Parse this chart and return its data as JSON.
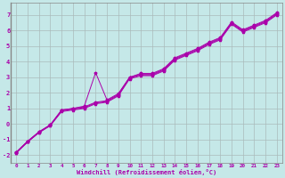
{
  "xlabel": "Windchill (Refroidissement éolien,°C)",
  "ylabel": "",
  "xlim": [
    -0.5,
    23.5
  ],
  "ylim": [
    -2.5,
    7.8
  ],
  "xticks": [
    0,
    1,
    2,
    3,
    4,
    5,
    6,
    7,
    8,
    9,
    10,
    11,
    12,
    13,
    14,
    15,
    16,
    17,
    18,
    19,
    20,
    21,
    22,
    23
  ],
  "yticks": [
    -2,
    -1,
    0,
    1,
    2,
    3,
    4,
    5,
    6,
    7
  ],
  "bg_color": "#c5e8e8",
  "line_color": "#aa00aa",
  "grid_color": "#aabbbb",
  "series_x": [
    0,
    1,
    2,
    3,
    4,
    5,
    6,
    7,
    8,
    9,
    10,
    11,
    12,
    13,
    14,
    15,
    16,
    17,
    18,
    19,
    20,
    21,
    22,
    23
  ],
  "series": [
    [
      -1.8,
      -1.1,
      -0.5,
      -0.05,
      0.9,
      1.0,
      1.15,
      3.3,
      1.55,
      1.95,
      3.0,
      3.25,
      3.25,
      3.55,
      4.25,
      4.55,
      4.85,
      5.25,
      5.55,
      6.55,
      6.05,
      6.35,
      6.65,
      7.15
    ],
    [
      -1.8,
      -1.1,
      -0.5,
      -0.05,
      0.9,
      1.0,
      1.1,
      1.4,
      1.5,
      1.9,
      3.0,
      3.2,
      3.2,
      3.5,
      4.2,
      4.5,
      4.8,
      5.2,
      5.5,
      6.5,
      6.0,
      6.3,
      6.6,
      7.1
    ],
    [
      -1.85,
      -1.15,
      -0.55,
      -0.1,
      0.85,
      0.95,
      1.05,
      1.35,
      1.45,
      1.85,
      2.95,
      3.15,
      3.15,
      3.45,
      4.15,
      4.45,
      4.75,
      5.15,
      5.45,
      6.45,
      5.95,
      6.25,
      6.55,
      7.05
    ],
    [
      -1.85,
      -1.15,
      -0.55,
      -0.1,
      0.8,
      0.9,
      1.0,
      1.3,
      1.4,
      1.8,
      2.9,
      3.1,
      3.1,
      3.4,
      4.1,
      4.4,
      4.7,
      5.1,
      5.4,
      6.4,
      5.9,
      6.2,
      6.5,
      7.0
    ]
  ]
}
